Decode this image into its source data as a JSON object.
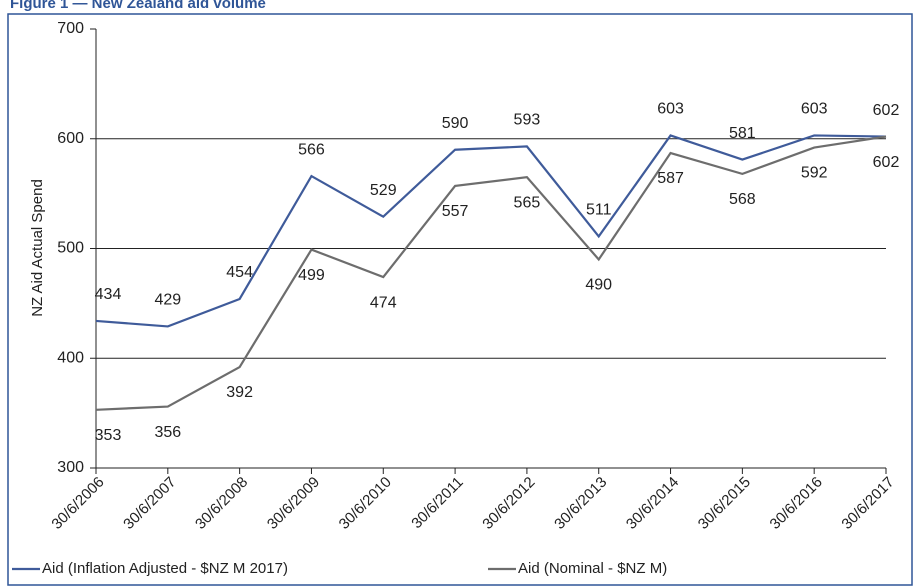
{
  "chart_data": {
    "type": "line",
    "title": "Figure 1 — New Zealand aid volume",
    "y_label": "NZ Aid Actual Spend",
    "categories": [
      "30/6/2006",
      "30/6/2007",
      "30/6/2008",
      "30/6/2009",
      "30/6/2010",
      "30/6/2011",
      "30/6/2012",
      "30/6/2013",
      "30/6/2014",
      "30/6/2015",
      "30/6/2016",
      "30/6/2017"
    ],
    "series": [
      {
        "name": "Aid (Inflation Adjusted - $NZ M 2017)",
        "color": "#3f5b9a",
        "values": [
          434,
          429,
          454,
          566,
          529,
          590,
          593,
          511,
          603,
          581,
          603,
          602
        ]
      },
      {
        "name": "Aid (Nominal - $NZ M)",
        "color": "#6d6d6d",
        "values": [
          353,
          356,
          392,
          499,
          474,
          557,
          565,
          490,
          587,
          568,
          592,
          602
        ]
      }
    ],
    "ylim": [
      300,
      700
    ],
    "yticks": [
      300,
      400,
      500,
      600,
      700
    ],
    "grid": true,
    "legend": "bottom"
  }
}
